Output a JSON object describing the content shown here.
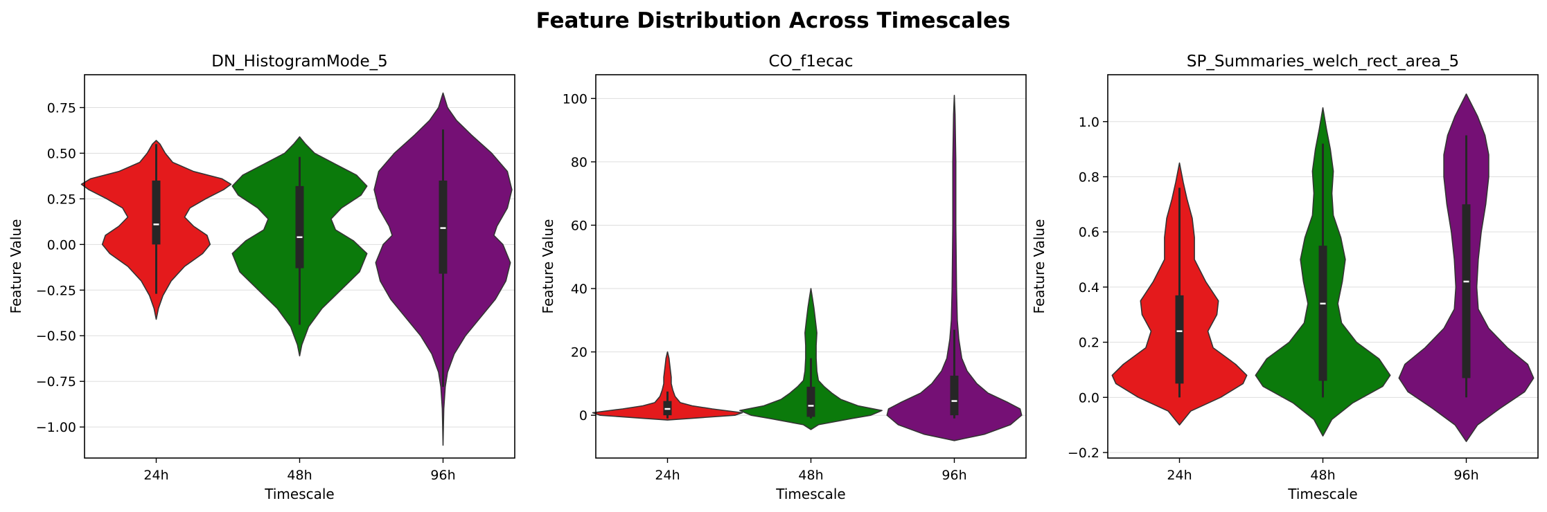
{
  "figure_title": "Feature Distribution Across Timescales",
  "colors": {
    "24h": "#e41a1c",
    "48h": "#0b7a0b",
    "96h": "#751075",
    "box": "#262626",
    "median": "#ffffff",
    "grid": "#dddddd"
  },
  "chart_data": [
    {
      "type": "violin",
      "title": "DN_HistogramMode_5",
      "xlabel": "Timescale",
      "ylabel": "Feature Value",
      "categories": [
        "24h",
        "48h",
        "96h"
      ],
      "ylim": [
        -1.17,
        0.93
      ],
      "yticks": [
        -1.0,
        -0.75,
        -0.5,
        -0.25,
        0.0,
        0.25,
        0.5,
        0.75
      ],
      "ytick_labels": [
        "−1.00",
        "−0.75",
        "−0.50",
        "−0.25",
        "0.00",
        "0.25",
        "0.50",
        "0.75"
      ],
      "grid": "y",
      "violins": [
        {
          "category": "24h",
          "min": -0.41,
          "max": 0.57,
          "whisker_low": -0.27,
          "whisker_high": 0.55,
          "q1": 0.0,
          "median": 0.11,
          "q3": 0.35,
          "density": [
            [
              -0.41,
              0.0
            ],
            [
              -0.35,
              0.03
            ],
            [
              -0.28,
              0.09
            ],
            [
              -0.2,
              0.2
            ],
            [
              -0.12,
              0.38
            ],
            [
              -0.05,
              0.62
            ],
            [
              0.0,
              0.72
            ],
            [
              0.05,
              0.68
            ],
            [
              0.1,
              0.5
            ],
            [
              0.15,
              0.38
            ],
            [
              0.2,
              0.45
            ],
            [
              0.25,
              0.66
            ],
            [
              0.3,
              0.9
            ],
            [
              0.33,
              1.0
            ],
            [
              0.36,
              0.88
            ],
            [
              0.4,
              0.5
            ],
            [
              0.45,
              0.22
            ],
            [
              0.5,
              0.12
            ],
            [
              0.55,
              0.05
            ],
            [
              0.57,
              0.0
            ]
          ]
        },
        {
          "category": "48h",
          "min": -0.61,
          "max": 0.59,
          "whisker_low": -0.44,
          "whisker_high": 0.48,
          "q1": -0.13,
          "median": 0.04,
          "q3": 0.32,
          "density": [
            [
              -0.61,
              0.0
            ],
            [
              -0.55,
              0.03
            ],
            [
              -0.45,
              0.12
            ],
            [
              -0.35,
              0.3
            ],
            [
              -0.25,
              0.55
            ],
            [
              -0.15,
              0.8
            ],
            [
              -0.05,
              0.9
            ],
            [
              0.02,
              0.72
            ],
            [
              0.08,
              0.48
            ],
            [
              0.14,
              0.42
            ],
            [
              0.2,
              0.56
            ],
            [
              0.27,
              0.82
            ],
            [
              0.32,
              0.9
            ],
            [
              0.38,
              0.76
            ],
            [
              0.44,
              0.48
            ],
            [
              0.5,
              0.2
            ],
            [
              0.55,
              0.08
            ],
            [
              0.59,
              0.0
            ]
          ]
        },
        {
          "category": "96h",
          "min": -1.1,
          "max": 0.83,
          "whisker_low": -0.78,
          "whisker_high": 0.63,
          "q1": -0.16,
          "median": 0.09,
          "q3": 0.35,
          "density": [
            [
              -1.1,
              0.0
            ],
            [
              -0.9,
              0.01
            ],
            [
              -0.78,
              0.03
            ],
            [
              -0.7,
              0.06
            ],
            [
              -0.6,
              0.15
            ],
            [
              -0.5,
              0.3
            ],
            [
              -0.4,
              0.5
            ],
            [
              -0.3,
              0.7
            ],
            [
              -0.2,
              0.84
            ],
            [
              -0.1,
              0.9
            ],
            [
              0.0,
              0.8
            ],
            [
              0.05,
              0.68
            ],
            [
              0.1,
              0.72
            ],
            [
              0.2,
              0.86
            ],
            [
              0.3,
              0.92
            ],
            [
              0.4,
              0.86
            ],
            [
              0.5,
              0.65
            ],
            [
              0.6,
              0.38
            ],
            [
              0.68,
              0.18
            ],
            [
              0.75,
              0.06
            ],
            [
              0.83,
              0.0
            ]
          ]
        }
      ]
    },
    {
      "type": "violin",
      "title": "CO_f1ecac",
      "xlabel": "Timescale",
      "ylabel": "Feature Value",
      "categories": [
        "24h",
        "48h",
        "96h"
      ],
      "ylim": [
        -13.5,
        107.5
      ],
      "yticks": [
        0,
        20,
        40,
        60,
        80,
        100
      ],
      "ytick_labels": [
        "0",
        "20",
        "40",
        "60",
        "80",
        "100"
      ],
      "grid": "y",
      "violins": [
        {
          "category": "24h",
          "min": -1.5,
          "max": 20,
          "whisker_low": -1.0,
          "whisker_high": 7.5,
          "q1": 0,
          "median": 2,
          "q3": 4.5,
          "density": [
            [
              -1.5,
              0.0
            ],
            [
              -1.0,
              0.3
            ],
            [
              0,
              0.9
            ],
            [
              0.8,
              1.0
            ],
            [
              2,
              0.6
            ],
            [
              3,
              0.33
            ],
            [
              4,
              0.17
            ],
            [
              6,
              0.1
            ],
            [
              8,
              0.07
            ],
            [
              10,
              0.05
            ],
            [
              12,
              0.05
            ],
            [
              14,
              0.04
            ],
            [
              16,
              0.03
            ],
            [
              18,
              0.02
            ],
            [
              20,
              0.0
            ]
          ]
        },
        {
          "category": "48h",
          "min": -4.5,
          "max": 40,
          "whisker_low": -1.0,
          "whisker_high": 18,
          "q1": -0.5,
          "median": 3,
          "q3": 9,
          "density": [
            [
              -4.5,
              0.0
            ],
            [
              -3,
              0.1
            ],
            [
              -1,
              0.55
            ],
            [
              0,
              0.8
            ],
            [
              1.5,
              0.95
            ],
            [
              3,
              0.63
            ],
            [
              5,
              0.4
            ],
            [
              7,
              0.28
            ],
            [
              9,
              0.18
            ],
            [
              11,
              0.1
            ],
            [
              14,
              0.08
            ],
            [
              18,
              0.07
            ],
            [
              22,
              0.07
            ],
            [
              26,
              0.08
            ],
            [
              30,
              0.06
            ],
            [
              34,
              0.04
            ],
            [
              37,
              0.02
            ],
            [
              40,
              0.0
            ]
          ]
        },
        {
          "category": "96h",
          "min": -8,
          "max": 101,
          "whisker_low": -1.0,
          "whisker_high": 27,
          "q1": 0,
          "median": 4.5,
          "q3": 12.5,
          "density": [
            [
              -8,
              0.0
            ],
            [
              -6,
              0.4
            ],
            [
              -3,
              0.75
            ],
            [
              0,
              0.9
            ],
            [
              2,
              0.88
            ],
            [
              4,
              0.72
            ],
            [
              7,
              0.45
            ],
            [
              10,
              0.3
            ],
            [
              14,
              0.17
            ],
            [
              18,
              0.1
            ],
            [
              24,
              0.06
            ],
            [
              30,
              0.04
            ],
            [
              40,
              0.03
            ],
            [
              50,
              0.025
            ],
            [
              60,
              0.02
            ],
            [
              70,
              0.02
            ],
            [
              80,
              0.02
            ],
            [
              88,
              0.015
            ],
            [
              95,
              0.01
            ],
            [
              101,
              0.0
            ]
          ]
        }
      ]
    },
    {
      "type": "violin",
      "title": "SP_Summaries_welch_rect_area_5",
      "xlabel": "Timescale",
      "ylabel": "Feature Value",
      "categories": [
        "24h",
        "48h",
        "96h"
      ],
      "ylim": [
        -0.22,
        1.17
      ],
      "yticks": [
        -0.2,
        0.0,
        0.2,
        0.4,
        0.6,
        0.8,
        1.0
      ],
      "ytick_labels": [
        "−0.2",
        "0.0",
        "0.2",
        "0.4",
        "0.6",
        "0.8",
        "1.0"
      ],
      "grid": "y",
      "violins": [
        {
          "category": "24h",
          "min": -0.1,
          "max": 0.85,
          "whisker_low": 0.0,
          "whisker_high": 0.76,
          "q1": 0.05,
          "median": 0.24,
          "q3": 0.37,
          "density": [
            [
              -0.1,
              0.0
            ],
            [
              -0.05,
              0.15
            ],
            [
              0.0,
              0.55
            ],
            [
              0.05,
              0.85
            ],
            [
              0.08,
              0.9
            ],
            [
              0.12,
              0.75
            ],
            [
              0.18,
              0.45
            ],
            [
              0.24,
              0.38
            ],
            [
              0.3,
              0.5
            ],
            [
              0.35,
              0.52
            ],
            [
              0.42,
              0.35
            ],
            [
              0.5,
              0.2
            ],
            [
              0.58,
              0.2
            ],
            [
              0.65,
              0.17
            ],
            [
              0.72,
              0.1
            ],
            [
              0.78,
              0.05
            ],
            [
              0.85,
              0.0
            ]
          ]
        },
        {
          "category": "48h",
          "min": -0.14,
          "max": 1.05,
          "whisker_low": 0.0,
          "whisker_high": 0.92,
          "q1": 0.06,
          "median": 0.34,
          "q3": 0.55,
          "density": [
            [
              -0.14,
              0.0
            ],
            [
              -0.08,
              0.12
            ],
            [
              -0.02,
              0.4
            ],
            [
              0.04,
              0.8
            ],
            [
              0.08,
              0.9
            ],
            [
              0.14,
              0.75
            ],
            [
              0.2,
              0.45
            ],
            [
              0.27,
              0.25
            ],
            [
              0.34,
              0.2
            ],
            [
              0.42,
              0.26
            ],
            [
              0.5,
              0.3
            ],
            [
              0.58,
              0.24
            ],
            [
              0.66,
              0.14
            ],
            [
              0.74,
              0.12
            ],
            [
              0.82,
              0.14
            ],
            [
              0.9,
              0.1
            ],
            [
              0.97,
              0.05
            ],
            [
              1.05,
              0.0
            ]
          ]
        },
        {
          "category": "96h",
          "min": -0.16,
          "max": 1.1,
          "whisker_low": 0.0,
          "whisker_high": 0.95,
          "q1": 0.07,
          "median": 0.42,
          "q3": 0.7,
          "density": [
            [
              -0.16,
              0.0
            ],
            [
              -0.1,
              0.15
            ],
            [
              -0.04,
              0.45
            ],
            [
              0.02,
              0.78
            ],
            [
              0.07,
              0.9
            ],
            [
              0.12,
              0.82
            ],
            [
              0.18,
              0.55
            ],
            [
              0.25,
              0.3
            ],
            [
              0.32,
              0.16
            ],
            [
              0.4,
              0.14
            ],
            [
              0.5,
              0.16
            ],
            [
              0.6,
              0.2
            ],
            [
              0.7,
              0.26
            ],
            [
              0.8,
              0.3
            ],
            [
              0.88,
              0.3
            ],
            [
              0.95,
              0.25
            ],
            [
              1.02,
              0.15
            ],
            [
              1.1,
              0.0
            ]
          ]
        }
      ]
    }
  ]
}
